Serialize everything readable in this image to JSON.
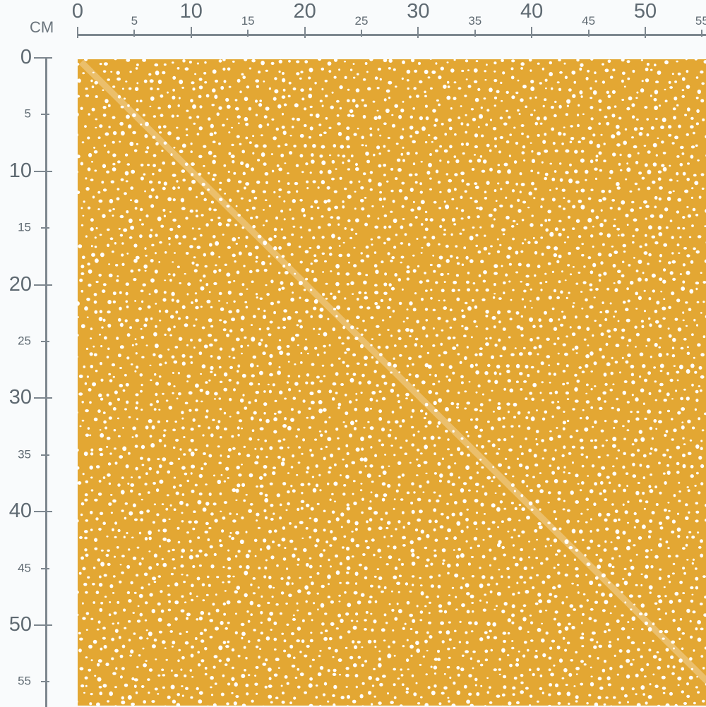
{
  "ruler": {
    "unit": "CM",
    "color": "#7d878f",
    "top_labels": [
      0,
      5,
      10,
      15,
      20,
      25,
      30,
      35,
      40,
      45,
      50,
      55
    ],
    "left_labels": [
      0,
      5,
      10,
      15,
      20,
      25,
      30,
      35,
      40,
      45,
      50,
      55
    ]
  },
  "fabric": {
    "pattern": "white irregular polka dots",
    "background_color": "#e3a733",
    "dot_color": "#ffffff"
  }
}
